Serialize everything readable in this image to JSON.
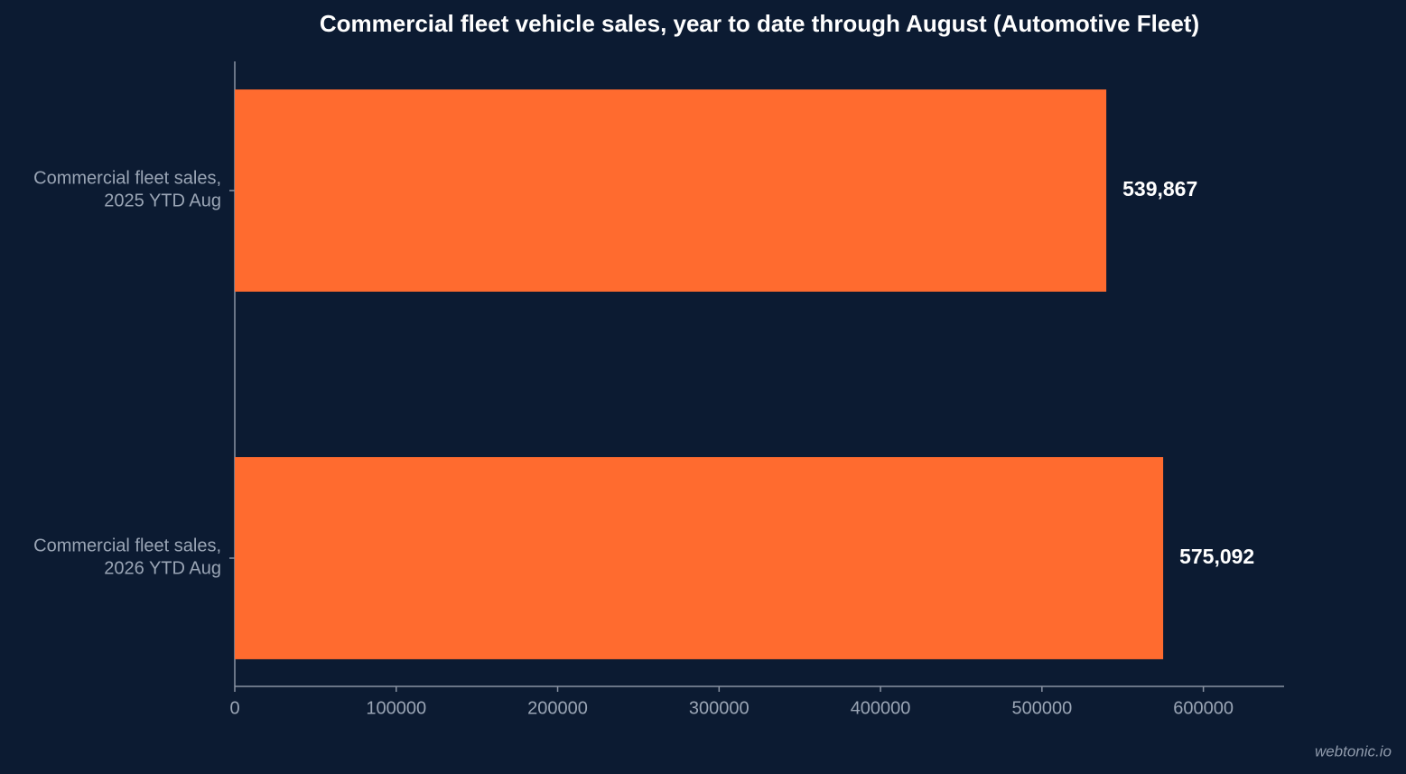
{
  "chart_data": {
    "type": "bar",
    "orientation": "horizontal",
    "title": "Commercial fleet vehicle sales, year to date through August (Automotive Fleet)",
    "categories": [
      "Commercial fleet sales,\n2025 YTD Aug",
      "Commercial fleet sales,\n2026 YTD Aug"
    ],
    "values": [
      539867,
      575092
    ],
    "value_labels": [
      "539,867",
      "575,092"
    ],
    "color": "#ff6b2f",
    "xlim": [
      0,
      650000
    ],
    "xticks": [
      0,
      100000,
      200000,
      300000,
      400000,
      500000,
      600000
    ],
    "grid": false,
    "watermark": "webtonic.io"
  }
}
